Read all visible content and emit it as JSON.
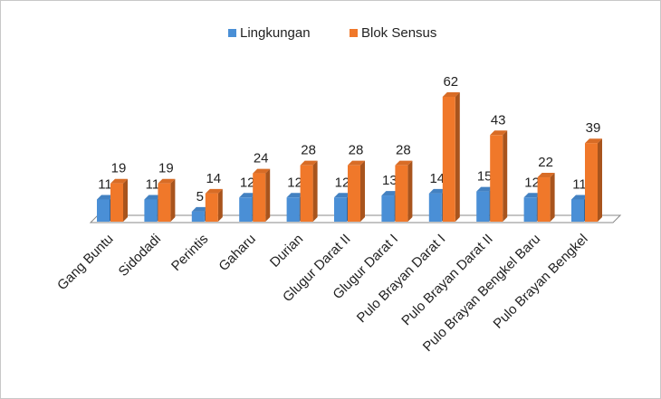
{
  "chart_data": {
    "type": "bar3d",
    "categories": [
      "Gang Buntu",
      "Sidodadi",
      "Perintis",
      "Gaharu",
      "Durian",
      "Glugur Darat II",
      "Glugur Darat I",
      "Pulo Brayan Darat I",
      "Pulo Brayan Darat II",
      "Pulo Brayan Bengkel Baru",
      "Pulo Brayan Bengkel"
    ],
    "series": [
      {
        "name": "Lingkungan",
        "color": "#4a8fd6",
        "values": [
          11,
          11,
          5,
          12,
          12,
          12,
          13,
          14,
          15,
          12,
          11
        ]
      },
      {
        "name": "Blok Sensus",
        "color": "#f0782a",
        "values": [
          19,
          19,
          14,
          24,
          28,
          28,
          28,
          62,
          43,
          22,
          39
        ]
      }
    ],
    "legend": "top"
  }
}
